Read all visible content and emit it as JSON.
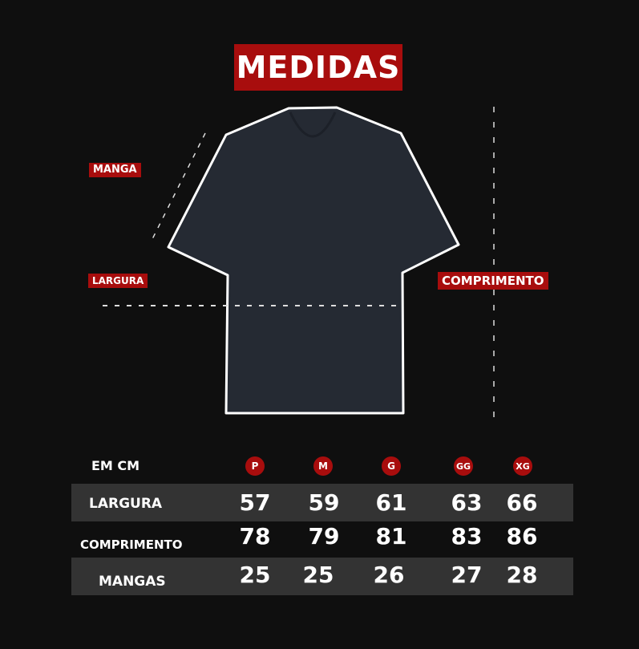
{
  "title": "MEDIDAS",
  "labels": {
    "manga": "MANGA",
    "largura": "LARGURA",
    "comprimento": "COMPRIMENTO"
  },
  "colors": {
    "accent": "#a80d0d",
    "background": "#0f0f0f",
    "shirt": "#252a33",
    "row_band": "#333333"
  },
  "table": {
    "unit_label": "EM CM",
    "sizes": [
      "P",
      "M",
      "G",
      "GG",
      "XG"
    ],
    "rows": [
      {
        "label": "LARGURA",
        "values": [
          "57",
          "59",
          "61",
          "63",
          "66"
        ]
      },
      {
        "label": "COMPRIMENTO",
        "values": [
          "78",
          "79",
          "81",
          "83",
          "86"
        ]
      },
      {
        "label": "MANGAS",
        "values": [
          "25",
          "25",
          "26",
          "27",
          "28"
        ]
      }
    ]
  }
}
